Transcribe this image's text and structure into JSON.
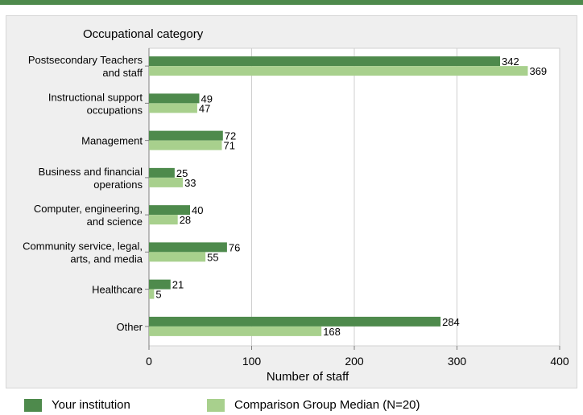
{
  "chart_data": {
    "type": "bar",
    "orientation": "horizontal",
    "category_axis_title": "Occupational category",
    "xlabel": "Number of staff",
    "xlim": [
      0,
      400
    ],
    "xticks": [
      0,
      100,
      200,
      300,
      400
    ],
    "grid": true,
    "legend_position": "bottom",
    "categories": [
      [
        "Postsecondary Teachers",
        "and staff"
      ],
      [
        "Instructional support",
        "occupations"
      ],
      [
        "Management"
      ],
      [
        "Business and financial",
        "operations"
      ],
      [
        "Computer, engineering,",
        "and science"
      ],
      [
        "Community service, legal,",
        "arts, and media"
      ],
      [
        "Healthcare"
      ],
      [
        "Other"
      ]
    ],
    "series": [
      {
        "name": "Your institution",
        "color": "#4e8a4c",
        "values": [
          342,
          49,
          72,
          25,
          40,
          76,
          21,
          284
        ]
      },
      {
        "name": "Comparison Group Median (N=20)",
        "color": "#a8d08d",
        "values": [
          369,
          47,
          71,
          33,
          28,
          55,
          5,
          168
        ]
      }
    ]
  }
}
